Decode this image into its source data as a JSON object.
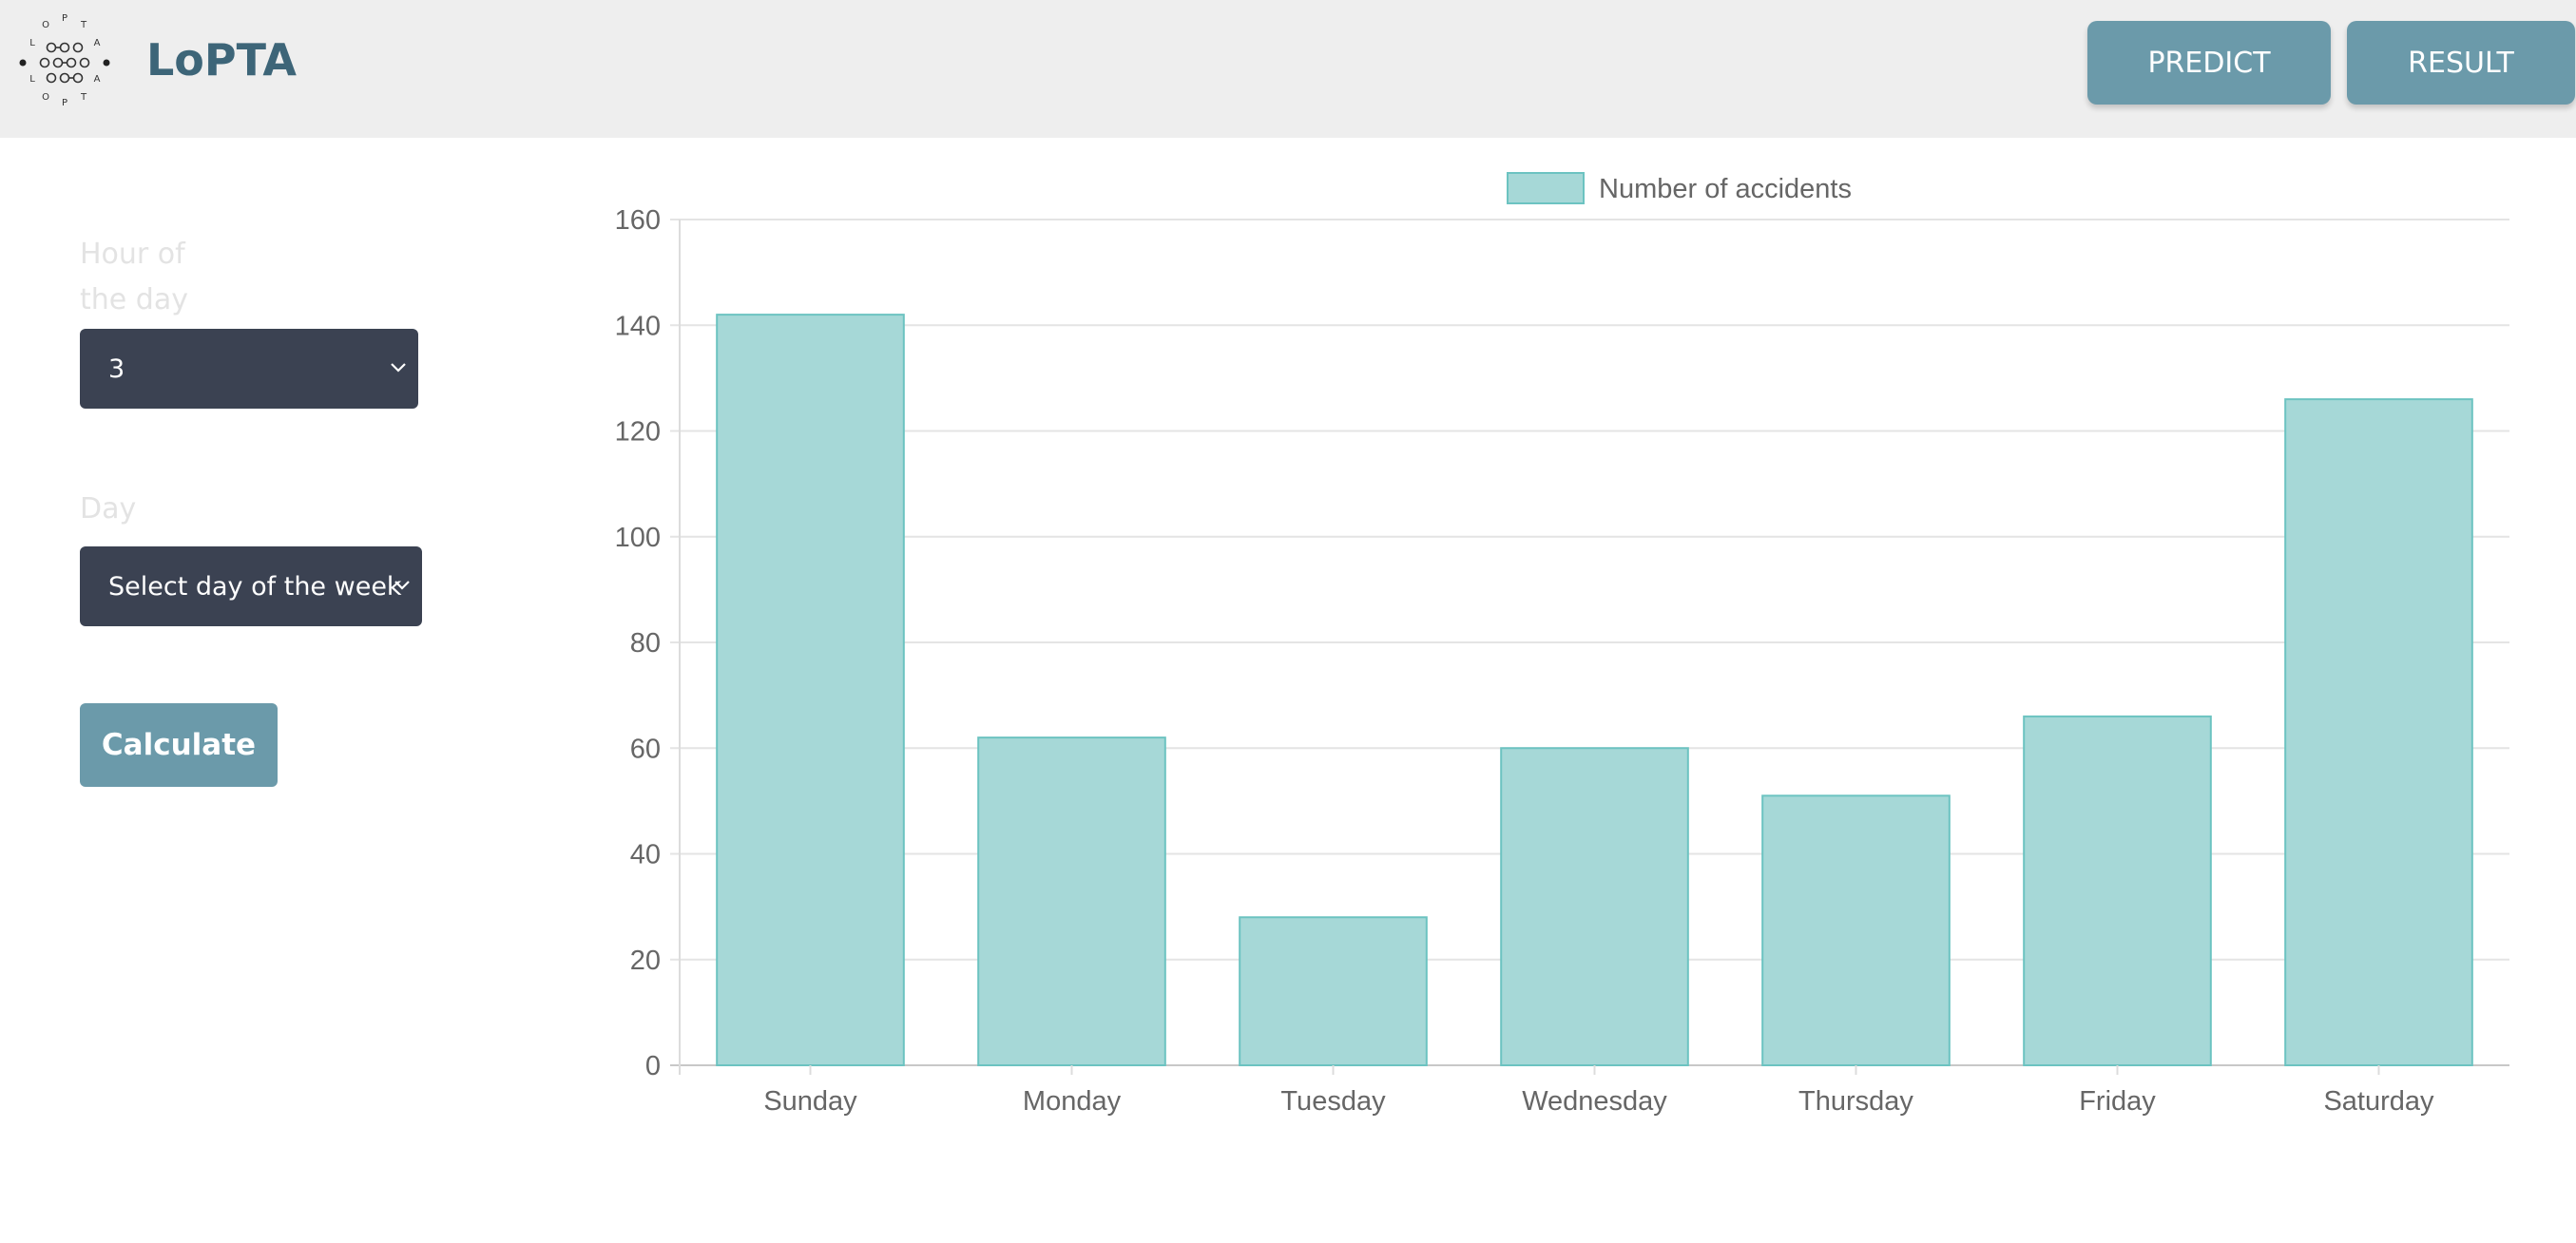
{
  "header": {
    "brand": "LoPTA",
    "logo_text": "LoPTA",
    "nav": {
      "predict": "PREDICT",
      "result": "RESULT"
    }
  },
  "form": {
    "hour_label": "Hour of the day",
    "hour_value": "3",
    "day_label": "Day",
    "day_value": "Select day of the week",
    "calculate": "Calculate"
  },
  "colors": {
    "header_bg": "#eeeeee",
    "brand": "#3d6578",
    "button": "#6b9aaa",
    "select_bg": "#3b4252",
    "bar_fill": "#a6d8d7",
    "bar_stroke": "#6cc3c1"
  },
  "icons": {
    "logo": "dots-circle-logo-icon",
    "select_arrow": "chevron-down-icon"
  },
  "chart_data": {
    "type": "bar",
    "categories": [
      "Sunday",
      "Monday",
      "Tuesday",
      "Wednesday",
      "Thursday",
      "Friday",
      "Saturday"
    ],
    "series": [
      {
        "name": "Number of accidents",
        "values": [
          142,
          62,
          28,
          60,
          51,
          66,
          126
        ]
      }
    ],
    "ylim": [
      0,
      160
    ],
    "yticks": [
      0,
      20,
      40,
      60,
      80,
      100,
      120,
      140,
      160
    ],
    "grid": true,
    "legend": "top-center"
  }
}
